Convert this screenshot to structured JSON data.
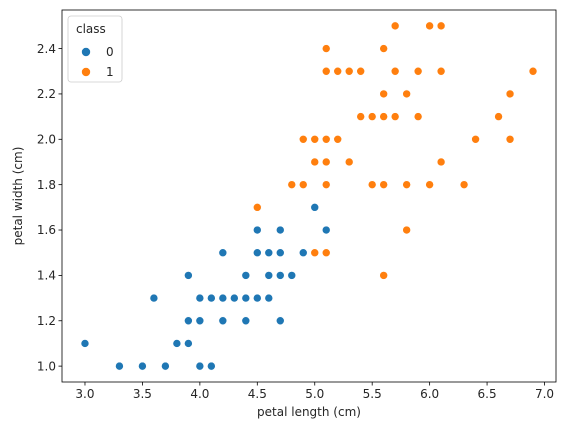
{
  "chart_data": {
    "type": "scatter",
    "xlabel": "petal length (cm)",
    "ylabel": "petal width (cm)",
    "xlim": [
      2.8,
      7.1
    ],
    "ylim": [
      0.93,
      2.57
    ],
    "xticks": [
      "3.0",
      "3.5",
      "4.0",
      "4.5",
      "5.0",
      "5.5",
      "6.0",
      "6.5",
      "7.0"
    ],
    "yticks": [
      "1.0",
      "1.2",
      "1.4",
      "1.6",
      "1.8",
      "2.0",
      "2.2",
      "2.4"
    ],
    "grid": false,
    "legend": {
      "title": "class",
      "placement": "top-left",
      "entries": [
        {
          "label": "0",
          "color": "#1f77b4"
        },
        {
          "label": "1",
          "color": "#ff7f0e"
        }
      ]
    },
    "series": [
      {
        "name": "0",
        "color": "#1f77b4",
        "points": [
          [
            3.0,
            1.1
          ],
          [
            3.3,
            1.0
          ],
          [
            3.5,
            1.0
          ],
          [
            3.7,
            1.0
          ],
          [
            4.0,
            1.0
          ],
          [
            4.1,
            1.0
          ],
          [
            3.6,
            1.3
          ],
          [
            3.8,
            1.1
          ],
          [
            3.9,
            1.1
          ],
          [
            3.9,
            1.2
          ],
          [
            3.9,
            1.4
          ],
          [
            4.0,
            1.2
          ],
          [
            4.0,
            1.3
          ],
          [
            4.1,
            1.3
          ],
          [
            4.2,
            1.2
          ],
          [
            4.2,
            1.3
          ],
          [
            4.2,
            1.5
          ],
          [
            4.3,
            1.3
          ],
          [
            4.4,
            1.2
          ],
          [
            4.4,
            1.3
          ],
          [
            4.4,
            1.4
          ],
          [
            4.5,
            1.3
          ],
          [
            4.5,
            1.5
          ],
          [
            4.5,
            1.6
          ],
          [
            4.6,
            1.3
          ],
          [
            4.6,
            1.4
          ],
          [
            4.6,
            1.5
          ],
          [
            4.7,
            1.2
          ],
          [
            4.7,
            1.4
          ],
          [
            4.7,
            1.5
          ],
          [
            4.7,
            1.6
          ],
          [
            4.8,
            1.4
          ],
          [
            4.9,
            1.5
          ],
          [
            5.0,
            1.7
          ],
          [
            5.1,
            1.6
          ]
        ]
      },
      {
        "name": "1",
        "color": "#ff7f0e",
        "points": [
          [
            4.5,
            1.7
          ],
          [
            4.8,
            1.8
          ],
          [
            4.9,
            1.8
          ],
          [
            4.9,
            2.0
          ],
          [
            5.0,
            1.5
          ],
          [
            5.0,
            1.9
          ],
          [
            5.0,
            2.0
          ],
          [
            5.1,
            1.5
          ],
          [
            5.1,
            1.8
          ],
          [
            5.1,
            1.9
          ],
          [
            5.1,
            2.0
          ],
          [
            5.1,
            2.3
          ],
          [
            5.1,
            2.4
          ],
          [
            5.2,
            2.0
          ],
          [
            5.2,
            2.3
          ],
          [
            5.3,
            1.9
          ],
          [
            5.3,
            2.3
          ],
          [
            5.4,
            2.1
          ],
          [
            5.4,
            2.3
          ],
          [
            5.5,
            1.8
          ],
          [
            5.5,
            2.1
          ],
          [
            5.6,
            1.4
          ],
          [
            5.6,
            1.8
          ],
          [
            5.6,
            2.1
          ],
          [
            5.6,
            2.2
          ],
          [
            5.6,
            2.4
          ],
          [
            5.7,
            2.1
          ],
          [
            5.7,
            2.3
          ],
          [
            5.7,
            2.5
          ],
          [
            5.8,
            1.6
          ],
          [
            5.8,
            1.8
          ],
          [
            5.8,
            2.2
          ],
          [
            5.9,
            2.1
          ],
          [
            5.9,
            2.3
          ],
          [
            6.0,
            1.8
          ],
          [
            6.0,
            2.5
          ],
          [
            6.1,
            1.9
          ],
          [
            6.1,
            2.3
          ],
          [
            6.1,
            2.5
          ],
          [
            6.3,
            1.8
          ],
          [
            6.4,
            2.0
          ],
          [
            6.6,
            2.1
          ],
          [
            6.7,
            2.0
          ],
          [
            6.7,
            2.2
          ],
          [
            6.9,
            2.3
          ]
        ]
      }
    ]
  }
}
